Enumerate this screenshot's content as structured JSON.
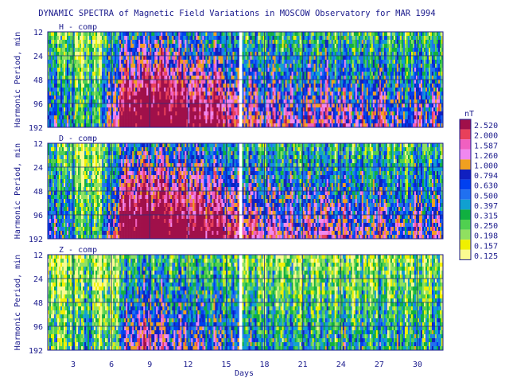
{
  "chart_data": {
    "type": "heatmap",
    "title": "DYNAMIC SPECTRA of Magnetic Field Variations in MOSCOW Observatory for MAR 1994",
    "xlabel": "Days",
    "ylabel": "Harmonic Period, min",
    "x_ticks": [
      3,
      6,
      9,
      12,
      15,
      18,
      21,
      24,
      27,
      30
    ],
    "xlim": [
      1,
      32
    ],
    "y_ticks": [
      12,
      24,
      48,
      96,
      192
    ],
    "y_scale": "log2",
    "ylim": [
      12,
      192
    ],
    "data_gap_day": 16,
    "panels": [
      {
        "name": "H - comp",
        "intensity_profile": [
          0.35,
          0.45,
          0.3,
          0.25,
          0.3,
          0.55,
          0.85,
          0.9,
          0.95,
          0.95,
          0.9,
          0.85,
          0.8,
          0.8,
          0.75,
          0.55,
          0.6,
          0.55,
          0.6,
          0.55,
          0.55,
          0.6,
          0.6,
          0.55,
          0.55,
          0.5,
          0.6,
          0.5,
          0.45,
          0.55,
          0.5
        ]
      },
      {
        "name": "D - comp",
        "intensity_profile": [
          0.35,
          0.45,
          0.3,
          0.2,
          0.25,
          0.5,
          0.9,
          0.95,
          0.95,
          0.95,
          0.9,
          0.85,
          0.85,
          0.8,
          0.75,
          0.6,
          0.65,
          0.55,
          0.6,
          0.55,
          0.55,
          0.6,
          0.6,
          0.55,
          0.55,
          0.5,
          0.6,
          0.5,
          0.45,
          0.55,
          0.5
        ]
      },
      {
        "name": "Z - comp",
        "intensity_profile": [
          0.15,
          0.2,
          0.2,
          0.35,
          0.2,
          0.15,
          0.45,
          0.6,
          0.6,
          0.55,
          0.5,
          0.5,
          0.5,
          0.45,
          0.45,
          0.35,
          0.35,
          0.3,
          0.3,
          0.3,
          0.3,
          0.3,
          0.3,
          0.3,
          0.3,
          0.3,
          0.3,
          0.3,
          0.3,
          0.3,
          0.3
        ]
      }
    ],
    "colorbar": {
      "unit": "nT",
      "levels": [
        "2.520",
        "2.000",
        "1.587",
        "1.260",
        "1.000",
        "0.794",
        "0.630",
        "0.500",
        "0.397",
        "0.315",
        "0.250",
        "0.198",
        "0.157",
        "0.125"
      ],
      "colors": [
        "#a0104a",
        "#e8405a",
        "#f060c0",
        "#f088f0",
        "#f0a020",
        "#1020c0",
        "#0040f0",
        "#2070f0",
        "#10a0d0",
        "#10b040",
        "#50d050",
        "#90e060",
        "#f0f000",
        "#fafa90"
      ]
    },
    "grid": true
  }
}
